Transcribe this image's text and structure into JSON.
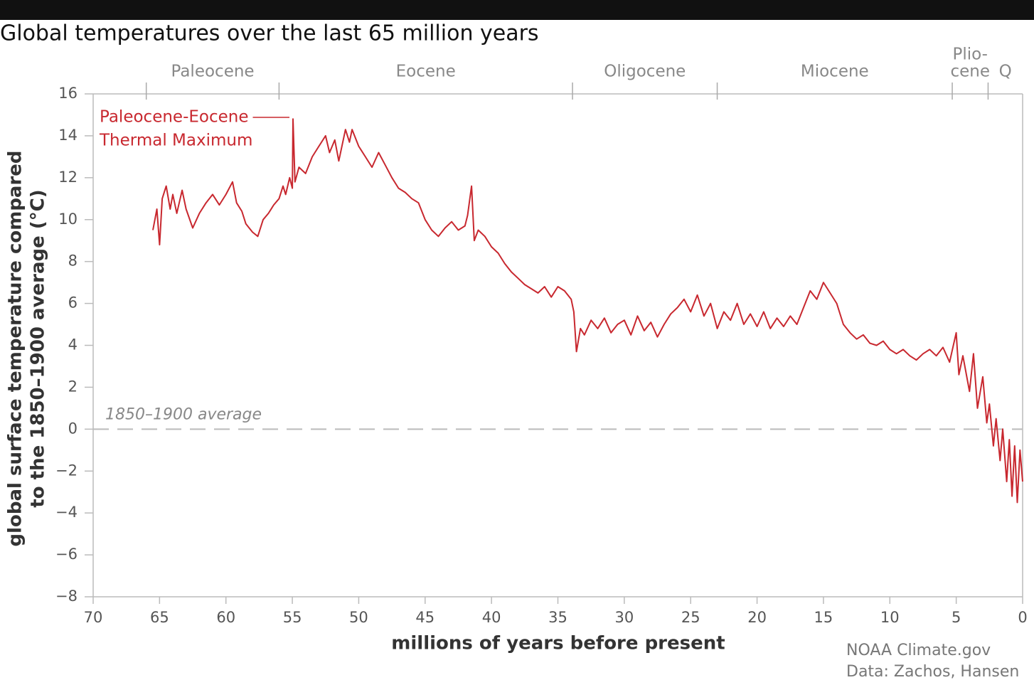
{
  "chart_data": {
    "type": "line",
    "title": "Global temperatures over the last 65 million years",
    "x_label": "millions of years before present",
    "y_label": [
      "global surface temperature compared",
      "to the 1850–1900 average (°C)"
    ],
    "xlim": [
      70,
      0
    ],
    "ylim": [
      -8,
      16
    ],
    "xticks": [
      70,
      65,
      60,
      55,
      50,
      45,
      40,
      35,
      30,
      25,
      20,
      15,
      10,
      5,
      0
    ],
    "yticks": [
      {
        "value": -8,
        "label": "−8"
      },
      {
        "value": -6,
        "label": "−6"
      },
      {
        "value": -4,
        "label": "−4"
      },
      {
        "value": -2,
        "label": "−2"
      },
      0,
      2,
      4,
      6,
      8,
      10,
      12,
      14,
      16
    ],
    "epochs": [
      {
        "label": [
          "Paleocene"
        ],
        "start": 66,
        "end": 56
      },
      {
        "label": [
          "Eocene"
        ],
        "start": 56,
        "end": 33.9
      },
      {
        "label": [
          "Oligocene"
        ],
        "start": 33.9,
        "end": 23
      },
      {
        "label": [
          "Miocene"
        ],
        "start": 23,
        "end": 5.3
      },
      {
        "label": [
          "Plio-",
          "cene"
        ],
        "start": 5.3,
        "end": 2.6
      },
      {
        "label": [
          "Q"
        ],
        "start": 2.6,
        "end": 0
      }
    ],
    "reference_line": {
      "value": 0,
      "label": "1850–1900 average"
    },
    "annotation": [
      "Paleocene-Eocene",
      "Thermal Maximum"
    ],
    "source": [
      "NOAA Climate.gov",
      "Data: Zachos, Hansen"
    ],
    "series": [
      {
        "color": "#c8282f",
        "x": [
          65.5,
          65.2,
          65.0,
          64.8,
          64.5,
          64.2,
          64.0,
          63.7,
          63.3,
          63.0,
          62.5,
          62.0,
          61.5,
          61.0,
          60.5,
          60.0,
          59.5,
          59.2,
          58.8,
          58.5,
          58.0,
          57.6,
          57.2,
          56.8,
          56.4,
          56.0,
          55.7,
          55.5,
          55.2,
          55.0,
          54.95,
          54.8,
          54.5,
          54.0,
          53.5,
          53.0,
          52.5,
          52.2,
          51.8,
          51.5,
          51.0,
          50.7,
          50.5,
          50.0,
          49.5,
          49.0,
          48.5,
          48.0,
          47.5,
          47.0,
          46.5,
          46.0,
          45.5,
          45.0,
          44.5,
          44.0,
          43.5,
          43.0,
          42.5,
          42.0,
          41.8,
          41.5,
          41.3,
          41.0,
          40.5,
          40.0,
          39.5,
          39.0,
          38.5,
          38.0,
          37.5,
          37.0,
          36.5,
          36.0,
          35.5,
          35.0,
          34.5,
          34.0,
          33.8,
          33.6,
          33.3,
          33.0,
          32.5,
          32.0,
          31.5,
          31.0,
          30.5,
          30.0,
          29.5,
          29.0,
          28.5,
          28.0,
          27.5,
          27.0,
          26.5,
          26.0,
          25.5,
          25.0,
          24.5,
          24.0,
          23.5,
          23.0,
          22.5,
          22.0,
          21.5,
          21.0,
          20.5,
          20.0,
          19.5,
          19.0,
          18.5,
          18.0,
          17.5,
          17.0,
          16.5,
          16.0,
          15.5,
          15.0,
          14.5,
          14.0,
          13.5,
          13.0,
          12.5,
          12.0,
          11.5,
          11.0,
          10.5,
          10.0,
          9.5,
          9.0,
          8.5,
          8.0,
          7.5,
          7.0,
          6.5,
          6.0,
          5.5,
          5.0,
          4.8,
          4.5,
          4.0,
          3.7,
          3.4,
          3.0,
          2.7,
          2.5,
          2.2,
          2.0,
          1.7,
          1.5,
          1.2,
          1.0,
          0.8,
          0.6,
          0.4,
          0.2,
          0.0
        ],
        "values": [
          9.5,
          10.5,
          8.8,
          11.0,
          11.6,
          10.5,
          11.2,
          10.3,
          11.4,
          10.5,
          9.6,
          10.3,
          10.8,
          11.2,
          10.7,
          11.2,
          11.8,
          10.8,
          10.4,
          9.8,
          9.4,
          9.2,
          10.0,
          10.3,
          10.7,
          11.0,
          11.6,
          11.2,
          12.0,
          11.5,
          14.8,
          11.8,
          12.5,
          12.2,
          13.0,
          13.5,
          14.0,
          13.2,
          13.8,
          12.8,
          14.3,
          13.7,
          14.3,
          13.5,
          13.0,
          12.5,
          13.2,
          12.6,
          12.0,
          11.5,
          11.3,
          11.0,
          10.8,
          10.0,
          9.5,
          9.2,
          9.6,
          9.9,
          9.5,
          9.7,
          10.2,
          11.6,
          9.0,
          9.5,
          9.2,
          8.7,
          8.4,
          7.9,
          7.5,
          7.2,
          6.9,
          6.7,
          6.5,
          6.8,
          6.3,
          6.8,
          6.6,
          6.2,
          5.6,
          3.7,
          4.8,
          4.5,
          5.2,
          4.8,
          5.3,
          4.6,
          5.0,
          5.2,
          4.5,
          5.4,
          4.7,
          5.1,
          4.4,
          5.0,
          5.5,
          5.8,
          6.2,
          5.6,
          6.4,
          5.4,
          6.0,
          4.8,
          5.6,
          5.2,
          6.0,
          5.0,
          5.5,
          4.9,
          5.6,
          4.8,
          5.3,
          4.9,
          5.4,
          5.0,
          5.8,
          6.6,
          6.2,
          7.0,
          6.5,
          6.0,
          5.0,
          4.6,
          4.3,
          4.5,
          4.1,
          4.0,
          4.2,
          3.8,
          3.6,
          3.8,
          3.5,
          3.3,
          3.6,
          3.8,
          3.5,
          3.9,
          3.2,
          4.6,
          2.6,
          3.5,
          1.8,
          3.6,
          1.0,
          2.5,
          0.3,
          1.2,
          -0.8,
          0.5,
          -1.5,
          0.0,
          -2.5,
          -0.5,
          -3.2,
          -0.8,
          -3.5,
          -1.0,
          -2.5
        ]
      }
    ]
  }
}
